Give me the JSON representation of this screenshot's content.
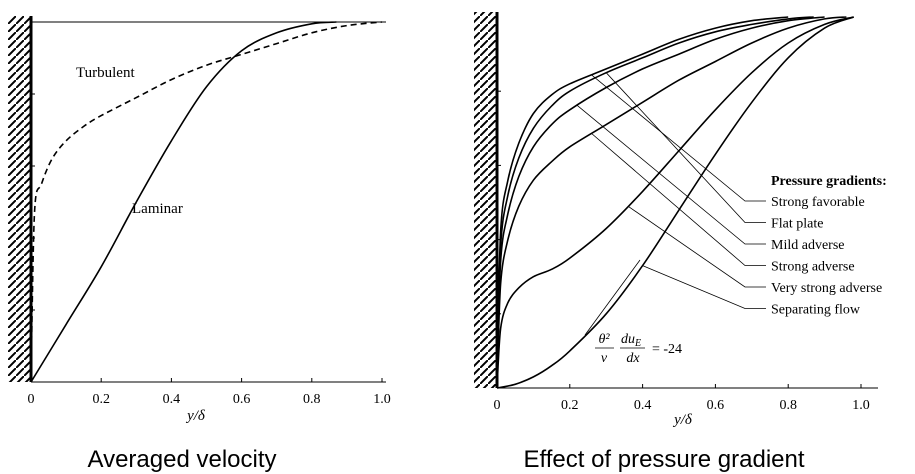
{
  "captions": {
    "left": "Averaged velocity",
    "right": "Effect of pressure gradient"
  },
  "chart_data": [
    {
      "type": "line",
      "title": "",
      "xlabel": "y/δ",
      "ylabel": "",
      "xlim": [
        0,
        1.0
      ],
      "ylim": [
        0,
        1.0
      ],
      "xticks": [
        "0",
        "0.2",
        "0.4",
        "0.6",
        "0.8",
        "1.0"
      ],
      "grid": false,
      "series": [
        {
          "name": "Turbulent",
          "style": "dashed",
          "x": [
            0,
            0.01,
            0.03,
            0.06,
            0.1,
            0.15,
            0.2,
            0.3,
            0.4,
            0.5,
            0.6,
            0.7,
            0.8,
            0.9,
            1.0
          ],
          "y": [
            0,
            0.47,
            0.55,
            0.62,
            0.67,
            0.71,
            0.74,
            0.79,
            0.84,
            0.88,
            0.91,
            0.94,
            0.97,
            0.99,
            1.0
          ]
        },
        {
          "name": "Laminar",
          "style": "solid",
          "x": [
            0,
            0.1,
            0.2,
            0.3,
            0.4,
            0.5,
            0.6,
            0.7,
            0.8,
            0.87
          ],
          "y": [
            0,
            0.16,
            0.32,
            0.5,
            0.67,
            0.82,
            0.92,
            0.97,
            0.995,
            1.0
          ]
        }
      ]
    },
    {
      "type": "line",
      "title": "",
      "xlabel": "y/δ",
      "ylabel": "",
      "xlim": [
        0,
        1.0
      ],
      "ylim": [
        0,
        1.0
      ],
      "xticks": [
        "0",
        "0.2",
        "0.4",
        "0.6",
        "0.8",
        "1.0"
      ],
      "grid": false,
      "legend_title": "Pressure gradients:",
      "annotation": {
        "frac_num": "θ²",
        "frac_den": "ν",
        "du_num": "du",
        "du_sub": "E",
        "du_den": "dx",
        "rhs": "= -24"
      },
      "series": [
        {
          "name": "Strong favorable",
          "x": [
            0,
            0.01,
            0.03,
            0.06,
            0.1,
            0.15,
            0.2,
            0.3,
            0.4,
            0.5,
            0.6,
            0.7,
            0.8
          ],
          "y": [
            0,
            0.42,
            0.56,
            0.66,
            0.74,
            0.79,
            0.82,
            0.86,
            0.9,
            0.94,
            0.97,
            0.99,
            1.0
          ]
        },
        {
          "name": "Flat plate",
          "x": [
            0,
            0.01,
            0.03,
            0.06,
            0.1,
            0.15,
            0.2,
            0.3,
            0.4,
            0.5,
            0.6,
            0.7,
            0.8,
            0.87
          ],
          "y": [
            0,
            0.38,
            0.52,
            0.62,
            0.7,
            0.76,
            0.8,
            0.85,
            0.89,
            0.93,
            0.96,
            0.98,
            0.995,
            1.0
          ]
        },
        {
          "name": "Mild adverse",
          "x": [
            0,
            0.01,
            0.03,
            0.06,
            0.1,
            0.15,
            0.2,
            0.3,
            0.4,
            0.5,
            0.6,
            0.7,
            0.8,
            0.9
          ],
          "y": [
            0,
            0.34,
            0.47,
            0.57,
            0.65,
            0.71,
            0.75,
            0.81,
            0.86,
            0.9,
            0.94,
            0.97,
            0.99,
            1.0
          ]
        },
        {
          "name": "Strong adverse",
          "x": [
            0,
            0.01,
            0.03,
            0.06,
            0.1,
            0.15,
            0.2,
            0.3,
            0.4,
            0.5,
            0.6,
            0.7,
            0.8,
            0.9,
            0.96
          ],
          "y": [
            0,
            0.28,
            0.4,
            0.49,
            0.56,
            0.61,
            0.65,
            0.71,
            0.77,
            0.83,
            0.88,
            0.93,
            0.97,
            0.995,
            1.0
          ]
        },
        {
          "name": "Very strong adverse",
          "x": [
            0,
            0.01,
            0.03,
            0.06,
            0.1,
            0.15,
            0.2,
            0.3,
            0.4,
            0.5,
            0.6,
            0.7,
            0.8,
            0.9,
            0.98
          ],
          "y": [
            0,
            0.16,
            0.23,
            0.27,
            0.3,
            0.32,
            0.35,
            0.43,
            0.53,
            0.64,
            0.75,
            0.85,
            0.93,
            0.98,
            1.0
          ]
        },
        {
          "name": "Separating flow",
          "x": [
            0,
            0.05,
            0.1,
            0.15,
            0.2,
            0.3,
            0.4,
            0.5,
            0.6,
            0.7,
            0.8,
            0.9,
            0.98
          ],
          "y": [
            0,
            0.01,
            0.03,
            0.06,
            0.1,
            0.2,
            0.33,
            0.48,
            0.63,
            0.77,
            0.89,
            0.97,
            1.0
          ]
        }
      ]
    }
  ]
}
